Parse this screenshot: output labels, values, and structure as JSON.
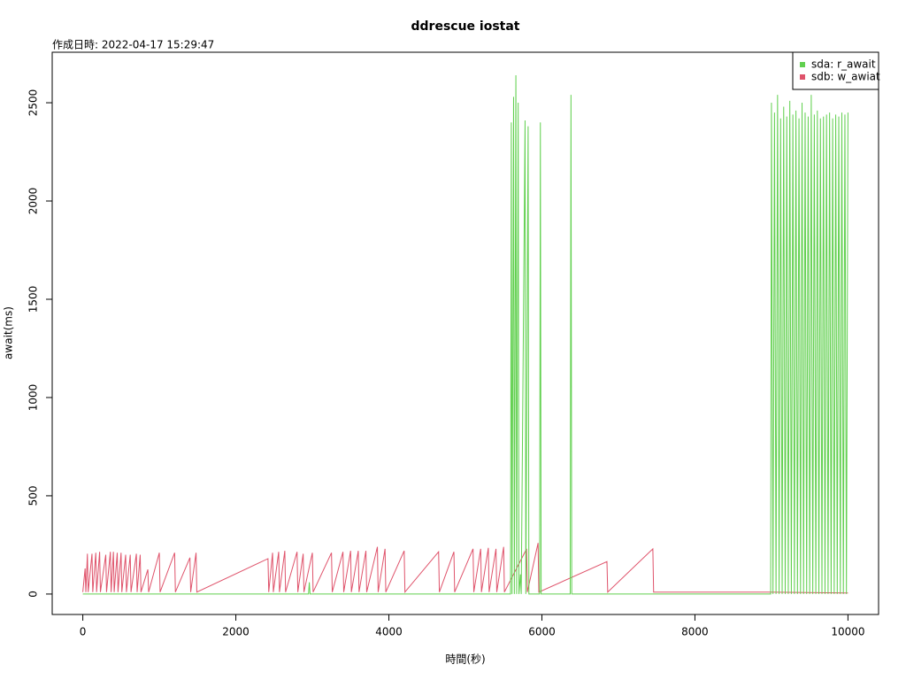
{
  "chart_data": {
    "type": "line",
    "title": "ddrescue iostat",
    "subtitle": "作成日時: 2022-04-17 15:29:47",
    "x_label": "時間(秒)",
    "y_label": "await(ms)",
    "xlim": [
      -400,
      10400
    ],
    "ylim": [
      -104,
      2757
    ],
    "xticks": [
      0,
      2000,
      4000,
      6000,
      8000,
      10000
    ],
    "yticks": [
      0,
      500,
      1000,
      1500,
      2000,
      2500
    ],
    "legend": "top-right",
    "series": [
      {
        "name": "sda: r_await",
        "color": "#61d04f",
        "x": [
          0,
          2950,
          2960,
          2970,
          5590,
          5600,
          5610,
          5630,
          5640,
          5660,
          5670,
          5690,
          5700,
          5720,
          5730,
          5780,
          5790,
          5820,
          5830,
          5970,
          5980,
          5990,
          6370,
          6380,
          6390,
          8990,
          9000,
          9020,
          9040,
          9060,
          9080,
          9100,
          9120,
          9140,
          9160,
          9180,
          9200,
          9220,
          9240,
          9260,
          9280,
          9300,
          9320,
          9340,
          9360,
          9380,
          9400,
          9420,
          9440,
          9460,
          9480,
          9500,
          9520,
          9540,
          9560,
          9580,
          9600,
          9620,
          9640,
          9660,
          9680,
          9700,
          9720,
          9740,
          9760,
          9780,
          9800,
          9820,
          9840,
          9860,
          9880,
          9900,
          9920,
          9940,
          9960,
          9980,
          10000
        ],
        "values": [
          0,
          0,
          60,
          0,
          0,
          2400,
          0,
          2530,
          0,
          2640,
          0,
          2500,
          0,
          100,
          0,
          2410,
          0,
          2380,
          0,
          0,
          2400,
          0,
          0,
          2540,
          0,
          0,
          2500,
          0,
          2450,
          0,
          2540,
          0,
          2420,
          0,
          2480,
          0,
          2430,
          0,
          2510,
          0,
          2440,
          0,
          2460,
          0,
          2420,
          0,
          2500,
          0,
          2450,
          0,
          2430,
          0,
          2540,
          0,
          2440,
          0,
          2460,
          0,
          2420,
          0,
          2430,
          0,
          2440,
          0,
          2450,
          0,
          2420,
          0,
          2440,
          0,
          2430,
          0,
          2450,
          0,
          2440,
          0,
          2450
        ]
      },
      {
        "name": "sdb: w_awiat",
        "color": "#df536b",
        "x": [
          0,
          30,
          40,
          60,
          70,
          120,
          130,
          170,
          180,
          220,
          230,
          300,
          310,
          360,
          370,
          400,
          410,
          450,
          460,
          500,
          510,
          560,
          570,
          620,
          630,
          700,
          710,
          750,
          760,
          850,
          860,
          1000,
          1010,
          1200,
          1210,
          1400,
          1410,
          1480,
          1490,
          2420,
          2430,
          2480,
          2490,
          2560,
          2570,
          2640,
          2650,
          2800,
          2810,
          2880,
          2890,
          3000,
          3010,
          3250,
          3260,
          3400,
          3410,
          3500,
          3510,
          3600,
          3610,
          3700,
          3710,
          3850,
          3860,
          3950,
          3960,
          4200,
          4210,
          4650,
          4660,
          4850,
          4860,
          5100,
          5110,
          5200,
          5210,
          5300,
          5310,
          5400,
          5410,
          5500,
          5510,
          5800,
          5810,
          5950,
          5960,
          6850,
          6860,
          7450,
          7460,
          8950,
          10000
        ],
        "values": [
          10,
          130,
          10,
          205,
          10,
          205,
          10,
          210,
          10,
          215,
          10,
          200,
          10,
          215,
          10,
          215,
          10,
          210,
          10,
          210,
          10,
          200,
          10,
          200,
          10,
          205,
          10,
          200,
          10,
          125,
          10,
          210,
          10,
          210,
          10,
          185,
          10,
          210,
          10,
          180,
          10,
          210,
          10,
          215,
          10,
          220,
          10,
          215,
          10,
          205,
          10,
          210,
          10,
          210,
          10,
          215,
          10,
          220,
          10,
          220,
          10,
          220,
          10,
          240,
          10,
          230,
          10,
          220,
          10,
          215,
          10,
          215,
          10,
          230,
          10,
          230,
          10,
          235,
          10,
          230,
          10,
          240,
          10,
          230,
          10,
          260,
          10,
          165,
          10,
          230,
          10,
          10,
          5
        ]
      }
    ]
  }
}
